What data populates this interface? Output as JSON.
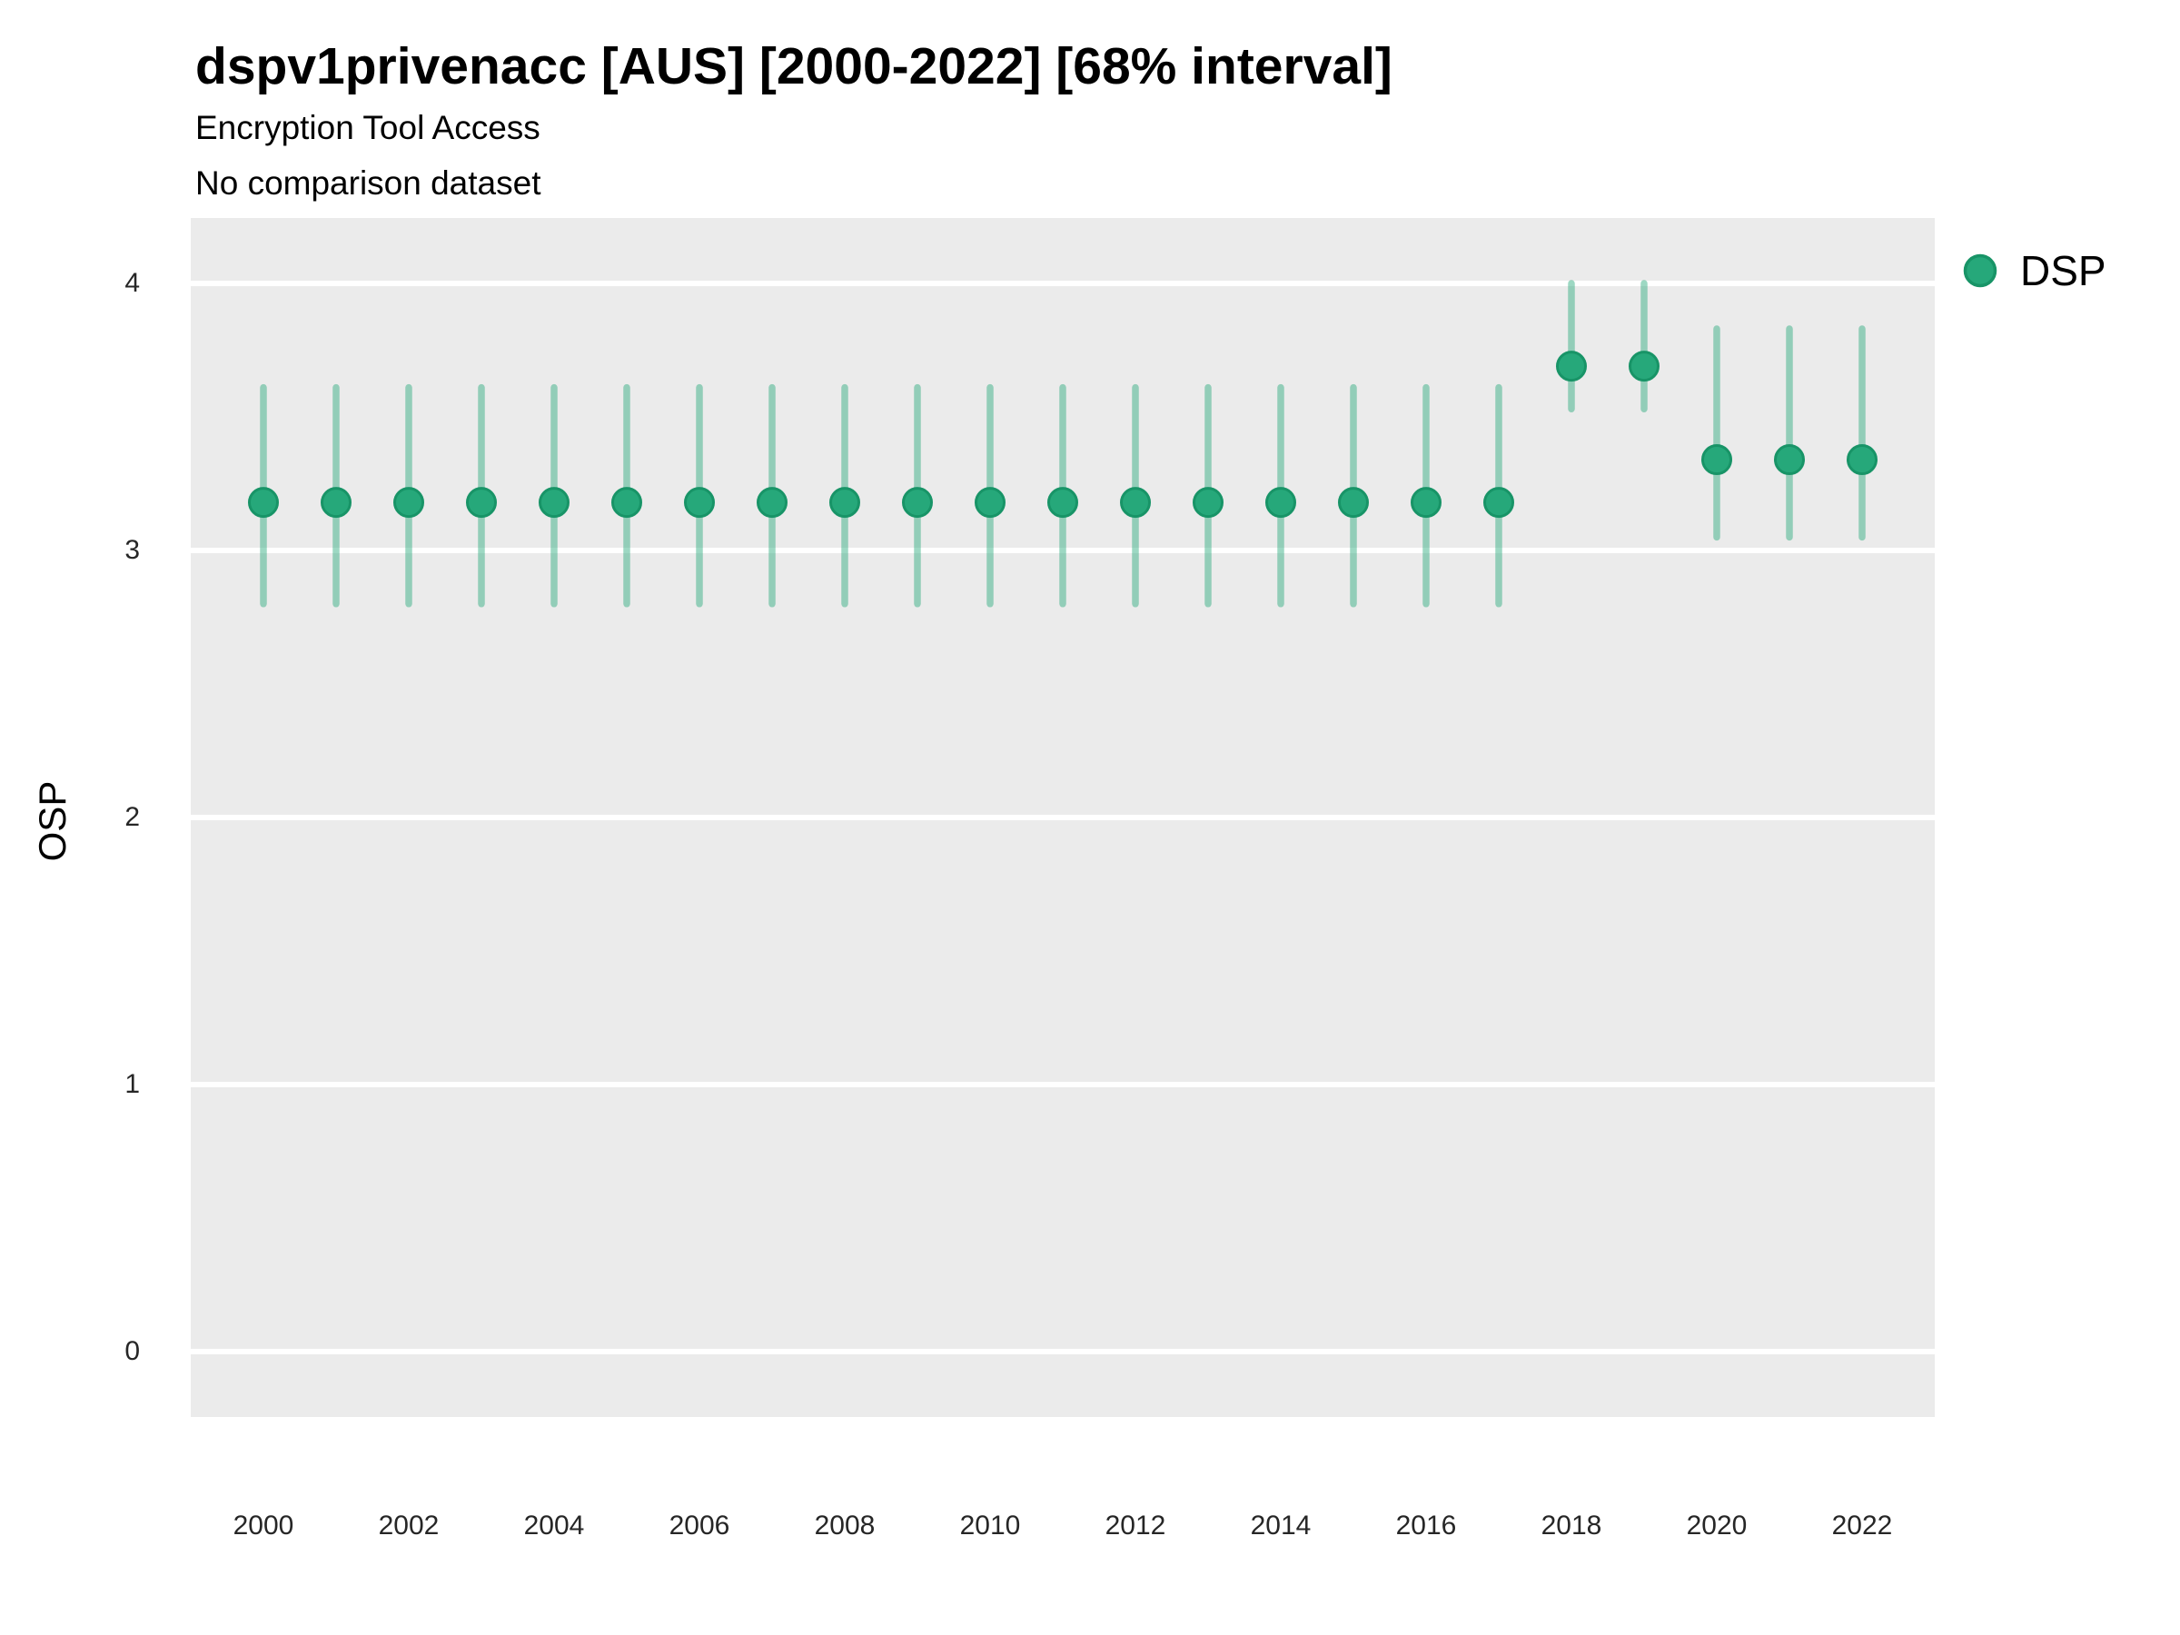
{
  "header": {
    "title": "dspv1privenacc [AUS] [2000-2022] [68% interval]",
    "subtitle": "Encryption Tool Access",
    "comparison_note": "No comparison dataset"
  },
  "legend": {
    "label": "DSP"
  },
  "colors": {
    "point_fill": "#26a87a",
    "point_edge": "#189467",
    "interval": "rgba(38,168,122,0.45)",
    "panel_bg": "#ebebeb",
    "gridline": "#ffffff",
    "tick_text": "#262626",
    "text": "#000000"
  },
  "chart_data": {
    "type": "scatter",
    "title": "dspv1privenacc [AUS] [2000-2022] [68% interval]",
    "subtitle": "Encryption Tool Access",
    "note": "No comparison dataset",
    "interval_label": "68% interval",
    "xlabel": "",
    "ylabel": "OSP",
    "legend_position": "right",
    "grid": {
      "horizontal": true,
      "vertical": false,
      "color": "#ffffff"
    },
    "panel_bg": "#ebebeb",
    "xlim": [
      1999,
      2023
    ],
    "ylim": [
      -0.245,
      4.245
    ],
    "xticks": [
      2000,
      2002,
      2004,
      2006,
      2008,
      2010,
      2012,
      2014,
      2016,
      2018,
      2020,
      2022
    ],
    "yticks": [
      0,
      1,
      2,
      3,
      4
    ],
    "x": [
      2000,
      2001,
      2002,
      2003,
      2004,
      2005,
      2006,
      2007,
      2008,
      2009,
      2010,
      2011,
      2012,
      2013,
      2014,
      2015,
      2016,
      2017,
      2018,
      2019,
      2020,
      2021,
      2022
    ],
    "series": [
      {
        "name": "DSP",
        "values": [
          3.18,
          3.18,
          3.18,
          3.18,
          3.18,
          3.18,
          3.18,
          3.18,
          3.18,
          3.18,
          3.18,
          3.18,
          3.18,
          3.18,
          3.18,
          3.18,
          3.18,
          3.18,
          3.69,
          3.69,
          3.34,
          3.34,
          3.34
        ],
        "interval_low": [
          2.8,
          2.8,
          2.8,
          2.8,
          2.8,
          2.8,
          2.8,
          2.8,
          2.8,
          2.8,
          2.8,
          2.8,
          2.8,
          2.8,
          2.8,
          2.8,
          2.8,
          2.8,
          3.53,
          3.53,
          3.05,
          3.05,
          3.05
        ],
        "interval_high": [
          3.61,
          3.61,
          3.61,
          3.61,
          3.61,
          3.61,
          3.61,
          3.61,
          3.61,
          3.61,
          3.61,
          3.61,
          3.61,
          3.61,
          3.61,
          3.61,
          3.61,
          3.61,
          4.0,
          4.0,
          3.83,
          3.83,
          3.83
        ]
      }
    ]
  }
}
